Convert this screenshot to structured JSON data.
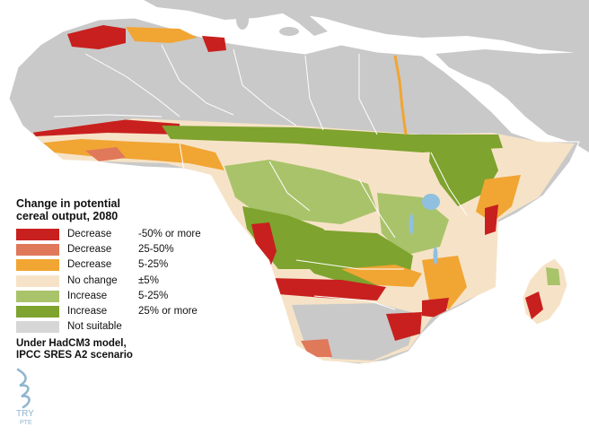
{
  "map": {
    "region": "Africa",
    "colors": {
      "ocean": "#ffffff",
      "land_other": "#c9c9c9",
      "borders": "#ffffff",
      "lakes": "#8fc0e0"
    }
  },
  "legend": {
    "title_line1": "Change in potential",
    "title_line2": "cereal output, 2080",
    "items": [
      {
        "category": "Decrease",
        "range": "-50% or more",
        "color": "#c8201e"
      },
      {
        "category": "Decrease",
        "range": "25-50%",
        "color": "#e0785a"
      },
      {
        "category": "Decrease",
        "range": "5-25%",
        "color": "#f1a533"
      },
      {
        "category": "No change",
        "range": "±5%",
        "color": "#f6e3c7"
      },
      {
        "category": "Increase",
        "range": "5-25%",
        "color": "#a9c36a"
      },
      {
        "category": "Increase",
        "range": "25% or more",
        "color": "#7ea32e"
      },
      {
        "category": "Not suitable",
        "range": "",
        "color": "#d6d6d6"
      }
    ],
    "note_line1": "Under HadCM3 model,",
    "note_line2": "IPCC SRES A2 scenario"
  },
  "watermark": {
    "text": "TRY",
    "subtext": "PTE",
    "color": "#8fb5cf"
  }
}
